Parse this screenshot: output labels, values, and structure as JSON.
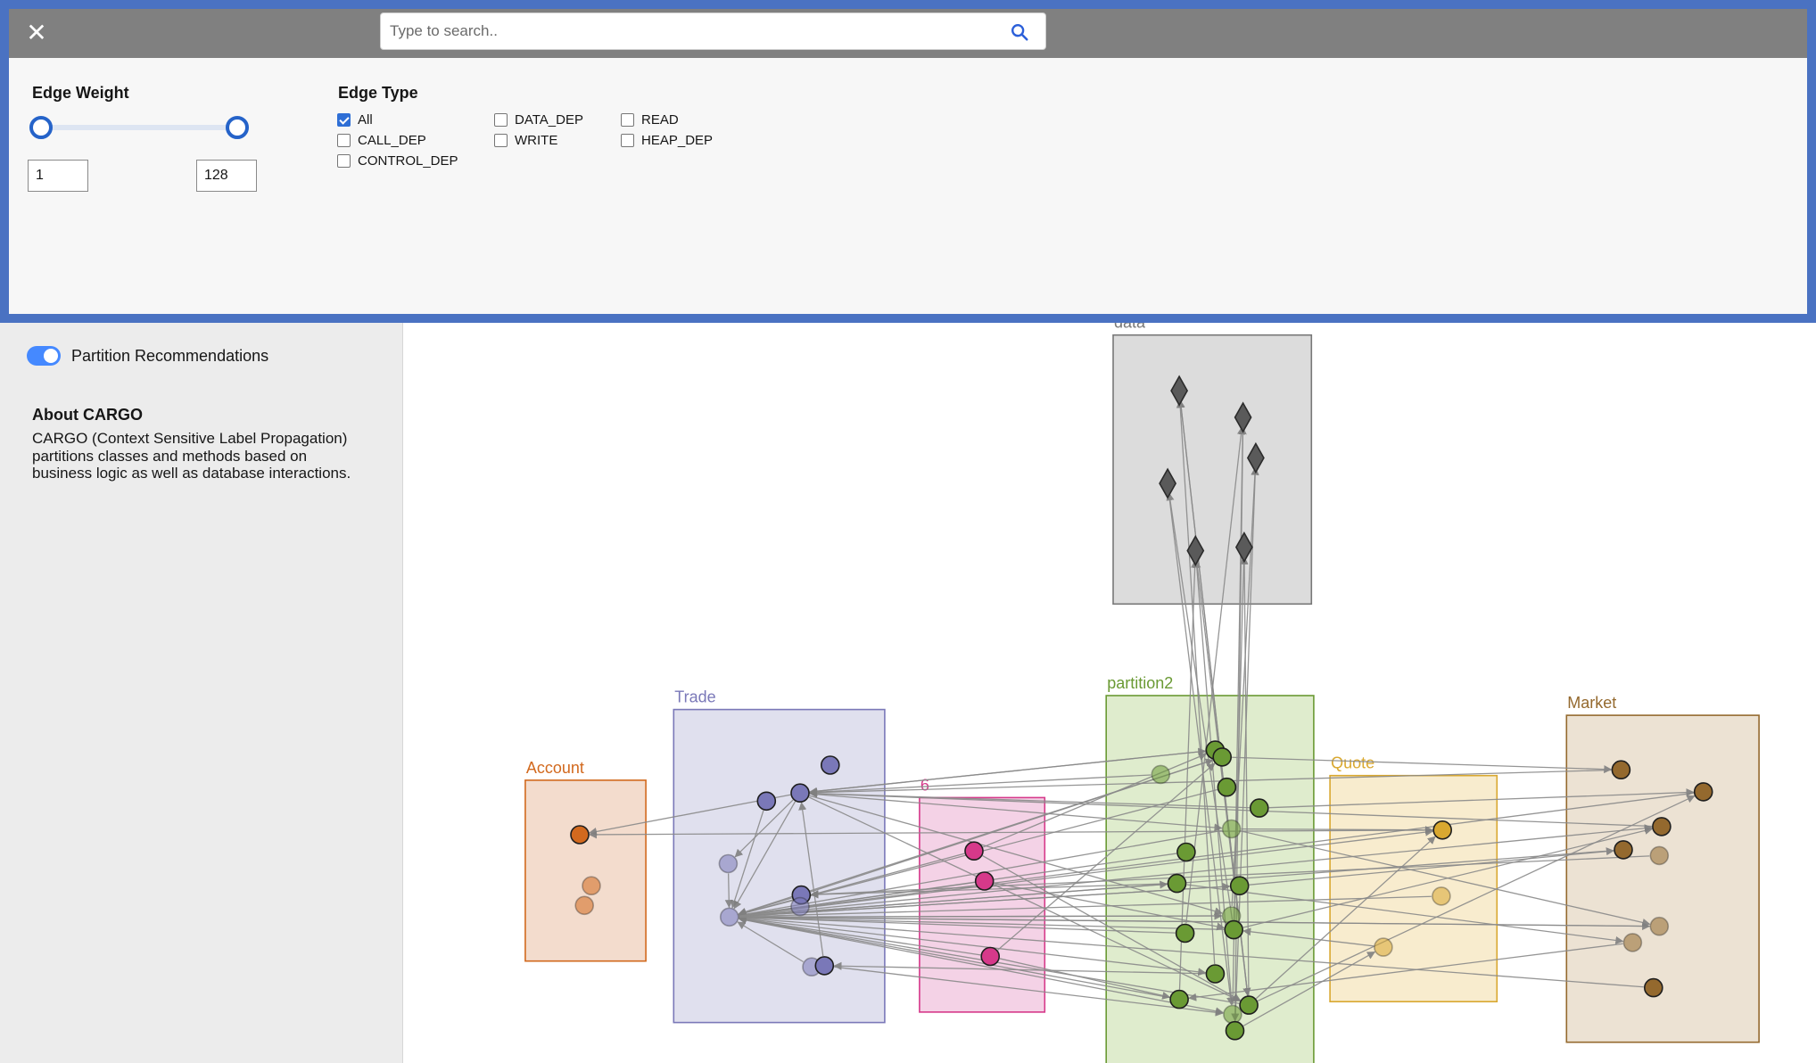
{
  "filter": {
    "close_label": "✕",
    "search_placeholder": "Type to search..",
    "edge_weight": {
      "title": "Edge Weight",
      "min": "1",
      "max": "128"
    },
    "edge_type": {
      "title": "Edge Type",
      "options": [
        {
          "label": "All",
          "checked": true
        },
        {
          "label": "CALL_DEP",
          "checked": false
        },
        {
          "label": "CONTROL_DEP",
          "checked": false
        },
        {
          "label": "DATA_DEP",
          "checked": false
        },
        {
          "label": "WRITE",
          "checked": false
        },
        {
          "label": "READ",
          "checked": false
        },
        {
          "label": "HEAP_DEP",
          "checked": false
        }
      ]
    }
  },
  "sidebar": {
    "toggle_label": "Partition Recommendations",
    "toggle_on": true,
    "about_title": "About CARGO",
    "about_text": "CARGO (Context Sensitive Label Propagation) partitions classes and methods based on business logic as well as database interactions."
  },
  "graph": {
    "partitions": [
      {
        "label": "data",
        "color": "#777777",
        "fill": "#dcdcdc"
      },
      {
        "label": "Trade",
        "color": "#7a78b8",
        "fill": "#e0e0ee"
      },
      {
        "label": "Account",
        "color": "#d2691e",
        "fill": "#f3dccd"
      },
      {
        "label": "6",
        "color": "#d6398a",
        "fill": "#f4d2e6"
      },
      {
        "label": "partition2",
        "color": "#6a9a34",
        "fill": "#dfeccd"
      },
      {
        "label": "Quote",
        "color": "#d9a830",
        "fill": "#f8ecce"
      },
      {
        "label": "Market",
        "color": "#94692e",
        "fill": "#ece2d3"
      }
    ]
  }
}
